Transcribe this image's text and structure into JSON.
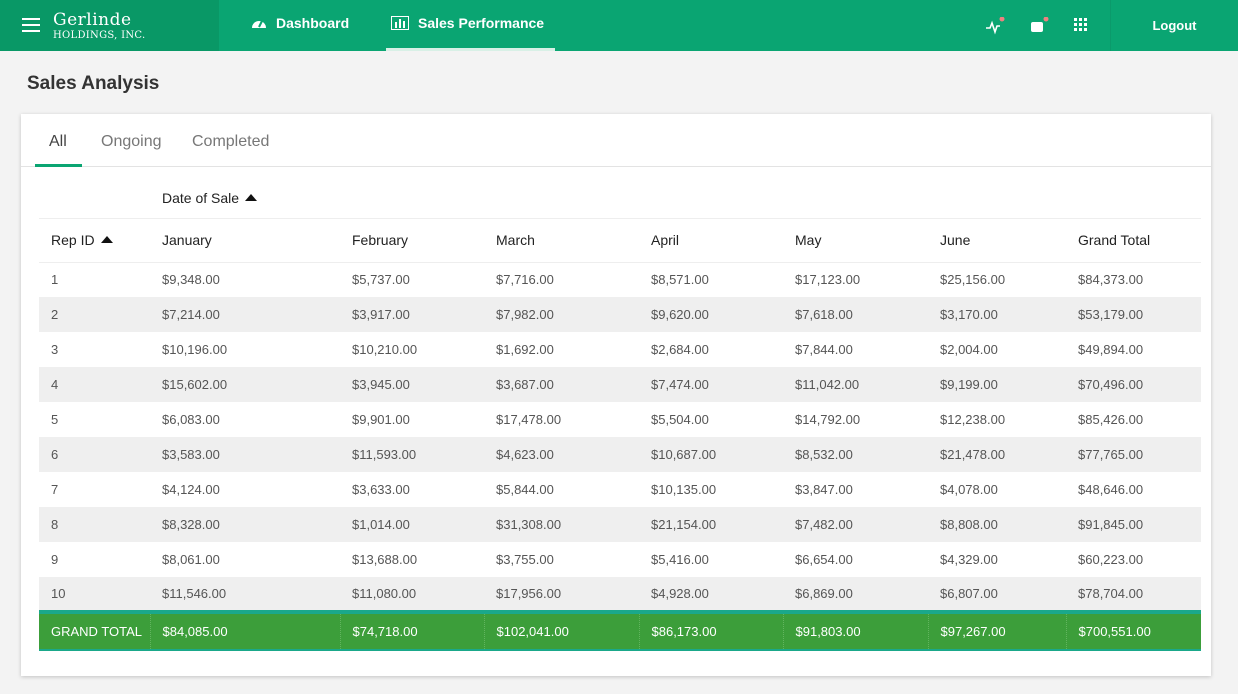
{
  "header": {
    "brand": {
      "name": "Gerlinde",
      "subtitle": "HOLDINGS, INC."
    },
    "nav": [
      "Dashboard",
      "Sales Performance"
    ],
    "logout": "Logout"
  },
  "page_title": "Sales Analysis",
  "tabs": [
    "All",
    "Ongoing",
    "Completed"
  ],
  "table": {
    "group_header": "Date of Sale",
    "columns": [
      "Rep ID",
      "January",
      "February",
      "March",
      "April",
      "May",
      "June",
      "Grand Total"
    ],
    "rows": [
      [
        "1",
        "$9,348.00",
        "$5,737.00",
        "$7,716.00",
        "$8,571.00",
        "$17,123.00",
        "$25,156.00",
        "$84,373.00"
      ],
      [
        "2",
        "$7,214.00",
        "$3,917.00",
        "$7,982.00",
        "$9,620.00",
        "$7,618.00",
        "$3,170.00",
        "$53,179.00"
      ],
      [
        "3",
        "$10,196.00",
        "$10,210.00",
        "$1,692.00",
        "$2,684.00",
        "$7,844.00",
        "$2,004.00",
        "$49,894.00"
      ],
      [
        "4",
        "$15,602.00",
        "$3,945.00",
        "$3,687.00",
        "$7,474.00",
        "$11,042.00",
        "$9,199.00",
        "$70,496.00"
      ],
      [
        "5",
        "$6,083.00",
        "$9,901.00",
        "$17,478.00",
        "$5,504.00",
        "$14,792.00",
        "$12,238.00",
        "$85,426.00"
      ],
      [
        "6",
        "$3,583.00",
        "$11,593.00",
        "$4,623.00",
        "$10,687.00",
        "$8,532.00",
        "$21,478.00",
        "$77,765.00"
      ],
      [
        "7",
        "$4,124.00",
        "$3,633.00",
        "$5,844.00",
        "$10,135.00",
        "$3,847.00",
        "$4,078.00",
        "$48,646.00"
      ],
      [
        "8",
        "$8,328.00",
        "$1,014.00",
        "$31,308.00",
        "$21,154.00",
        "$7,482.00",
        "$8,808.00",
        "$91,845.00"
      ],
      [
        "9",
        "$8,061.00",
        "$13,688.00",
        "$3,755.00",
        "$5,416.00",
        "$6,654.00",
        "$4,329.00",
        "$60,223.00"
      ],
      [
        "10",
        "$11,546.00",
        "$11,080.00",
        "$17,956.00",
        "$4,928.00",
        "$6,869.00",
        "$6,807.00",
        "$78,704.00"
      ]
    ],
    "footer": [
      "GRAND TOTAL",
      "$84,085.00",
      "$74,718.00",
      "$102,041.00",
      "$86,173.00",
      "$91,803.00",
      "$97,267.00",
      "$700,551.00"
    ]
  }
}
